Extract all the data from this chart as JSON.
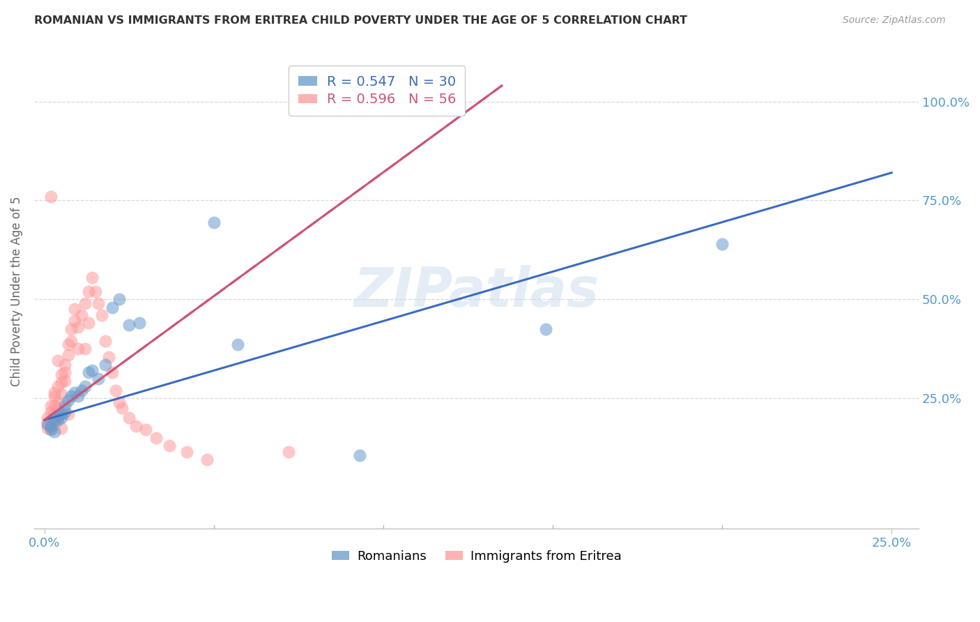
{
  "title": "ROMANIAN VS IMMIGRANTS FROM ERITREA CHILD POVERTY UNDER THE AGE OF 5 CORRELATION CHART",
  "source": "Source: ZipAtlas.com",
  "x_tick_labels": [
    "0.0%",
    "25.0%"
  ],
  "x_tick_positions": [
    0.0,
    0.25
  ],
  "y_tick_labels": [
    "100.0%",
    "75.0%",
    "50.0%",
    "25.0%"
  ],
  "y_tick_positions": [
    1.0,
    0.75,
    0.5,
    0.25
  ],
  "xlim": [
    -0.003,
    0.258
  ],
  "ylim": [
    -0.08,
    1.12
  ],
  "legend_label1": "R = 0.547   N = 30",
  "legend_label2": "R = 0.596   N = 56",
  "legend_series1": "Romanians",
  "legend_series2": "Immigrants from Eritrea",
  "ylabel": "Child Poverty Under the Age of 5",
  "watermark": "ZIPatlas",
  "blue_color": "#6699cc",
  "pink_color": "#ff9999",
  "blue_line_color": "#3a6bbf",
  "pink_line_color": "#cc5577",
  "axis_label_color": "#5599cc",
  "grid_color": "#d8d8d8",
  "blue_line": [
    [
      0.0,
      0.25
    ],
    [
      0.195,
      0.82
    ]
  ],
  "pink_line": [
    [
      0.0,
      0.135
    ],
    [
      0.195,
      1.04
    ]
  ],
  "rom_x": [
    0.001,
    0.002,
    0.002,
    0.003,
    0.003,
    0.004,
    0.004,
    0.005,
    0.005,
    0.006,
    0.006,
    0.007,
    0.008,
    0.009,
    0.01,
    0.011,
    0.012,
    0.013,
    0.014,
    0.016,
    0.018,
    0.02,
    0.022,
    0.025,
    0.028,
    0.05,
    0.057,
    0.093,
    0.148,
    0.2
  ],
  "rom_y": [
    0.185,
    0.18,
    0.17,
    0.195,
    0.165,
    0.205,
    0.195,
    0.21,
    0.2,
    0.215,
    0.23,
    0.245,
    0.255,
    0.265,
    0.255,
    0.27,
    0.28,
    0.315,
    0.32,
    0.3,
    0.335,
    0.48,
    0.5,
    0.435,
    0.44,
    0.695,
    0.385,
    0.105,
    0.425,
    0.64
  ],
  "eri_x": [
    0.001,
    0.001,
    0.001,
    0.002,
    0.002,
    0.002,
    0.002,
    0.003,
    0.003,
    0.003,
    0.003,
    0.003,
    0.004,
    0.004,
    0.004,
    0.004,
    0.005,
    0.005,
    0.005,
    0.005,
    0.006,
    0.006,
    0.006,
    0.007,
    0.007,
    0.007,
    0.008,
    0.008,
    0.009,
    0.009,
    0.01,
    0.01,
    0.011,
    0.012,
    0.012,
    0.013,
    0.013,
    0.014,
    0.015,
    0.016,
    0.017,
    0.018,
    0.019,
    0.02,
    0.021,
    0.022,
    0.023,
    0.025,
    0.027,
    0.03,
    0.033,
    0.037,
    0.042,
    0.048,
    0.002,
    0.072
  ],
  "eri_y": [
    0.175,
    0.2,
    0.185,
    0.215,
    0.23,
    0.175,
    0.185,
    0.21,
    0.23,
    0.255,
    0.265,
    0.185,
    0.225,
    0.24,
    0.28,
    0.345,
    0.26,
    0.29,
    0.31,
    0.175,
    0.315,
    0.335,
    0.295,
    0.36,
    0.385,
    0.21,
    0.395,
    0.425,
    0.445,
    0.475,
    0.375,
    0.43,
    0.46,
    0.49,
    0.375,
    0.44,
    0.52,
    0.555,
    0.52,
    0.49,
    0.46,
    0.395,
    0.355,
    0.315,
    0.27,
    0.24,
    0.225,
    0.2,
    0.18,
    0.17,
    0.15,
    0.13,
    0.115,
    0.095,
    0.76,
    0.115
  ]
}
